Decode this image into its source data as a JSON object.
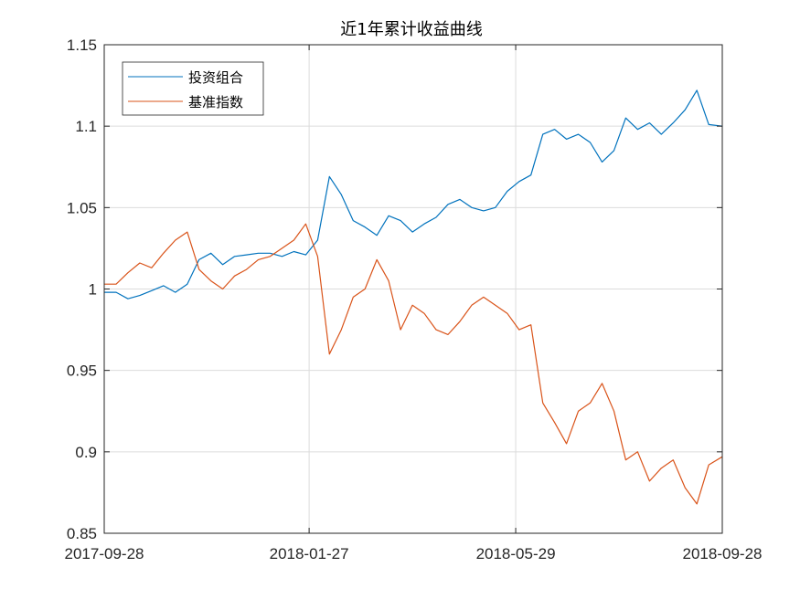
{
  "chart_data": {
    "type": "line",
    "title": "近1年累计收益曲线",
    "xlabel": "",
    "ylabel": "",
    "x_tick_labels": [
      "2017-09-28",
      "2018-01-27",
      "2018-05-29",
      "2018-09-28"
    ],
    "x_range": [
      "2017-09-28",
      "2018-09-28"
    ],
    "ylim": [
      0.85,
      1.15
    ],
    "y_ticks": [
      0.85,
      0.9,
      0.95,
      1,
      1.05,
      1.1,
      1.15
    ],
    "y_tick_labels": [
      "0.85",
      "0.9",
      "0.95",
      "1",
      "1.05",
      "1.1",
      "1.15"
    ],
    "grid": true,
    "legend_position": "top-left",
    "series": [
      {
        "name": "投资组合",
        "color": "#0072BD",
        "points": [
          [
            "2017-09-28",
            0.998
          ],
          [
            "2017-10-05",
            0.998
          ],
          [
            "2017-10-12",
            0.994
          ],
          [
            "2017-10-19",
            0.996
          ],
          [
            "2017-10-26",
            0.999
          ],
          [
            "2017-11-02",
            1.002
          ],
          [
            "2017-11-09",
            0.998
          ],
          [
            "2017-11-16",
            1.003
          ],
          [
            "2017-11-23",
            1.018
          ],
          [
            "2017-11-30",
            1.022
          ],
          [
            "2017-12-07",
            1.015
          ],
          [
            "2017-12-14",
            1.02
          ],
          [
            "2017-12-21",
            1.021
          ],
          [
            "2017-12-28",
            1.022
          ],
          [
            "2018-01-04",
            1.022
          ],
          [
            "2018-01-11",
            1.02
          ],
          [
            "2018-01-18",
            1.023
          ],
          [
            "2018-01-25",
            1.021
          ],
          [
            "2018-02-01",
            1.03
          ],
          [
            "2018-02-08",
            1.069
          ],
          [
            "2018-02-15",
            1.058
          ],
          [
            "2018-02-22",
            1.042
          ],
          [
            "2018-03-01",
            1.038
          ],
          [
            "2018-03-08",
            1.033
          ],
          [
            "2018-03-15",
            1.045
          ],
          [
            "2018-03-22",
            1.042
          ],
          [
            "2018-03-29",
            1.035
          ],
          [
            "2018-04-05",
            1.04
          ],
          [
            "2018-04-12",
            1.044
          ],
          [
            "2018-04-19",
            1.052
          ],
          [
            "2018-04-26",
            1.055
          ],
          [
            "2018-05-03",
            1.05
          ],
          [
            "2018-05-10",
            1.048
          ],
          [
            "2018-05-17",
            1.05
          ],
          [
            "2018-05-24",
            1.06
          ],
          [
            "2018-05-31",
            1.066
          ],
          [
            "2018-06-07",
            1.07
          ],
          [
            "2018-06-14",
            1.095
          ],
          [
            "2018-06-21",
            1.098
          ],
          [
            "2018-06-28",
            1.092
          ],
          [
            "2018-07-05",
            1.095
          ],
          [
            "2018-07-12",
            1.09
          ],
          [
            "2018-07-19",
            1.078
          ],
          [
            "2018-07-26",
            1.085
          ],
          [
            "2018-08-02",
            1.105
          ],
          [
            "2018-08-09",
            1.098
          ],
          [
            "2018-08-16",
            1.102
          ],
          [
            "2018-08-23",
            1.095
          ],
          [
            "2018-08-30",
            1.102
          ],
          [
            "2018-09-06",
            1.11
          ],
          [
            "2018-09-13",
            1.122
          ],
          [
            "2018-09-20",
            1.101
          ],
          [
            "2018-09-28",
            1.1
          ]
        ]
      },
      {
        "name": "基准指数",
        "color": "#D95319",
        "points": [
          [
            "2017-09-28",
            1.003
          ],
          [
            "2017-10-05",
            1.003
          ],
          [
            "2017-10-12",
            1.01
          ],
          [
            "2017-10-19",
            1.016
          ],
          [
            "2017-10-26",
            1.013
          ],
          [
            "2017-11-02",
            1.022
          ],
          [
            "2017-11-09",
            1.03
          ],
          [
            "2017-11-16",
            1.035
          ],
          [
            "2017-11-23",
            1.012
          ],
          [
            "2017-11-30",
            1.005
          ],
          [
            "2017-12-07",
            1.0
          ],
          [
            "2017-12-14",
            1.008
          ],
          [
            "2017-12-21",
            1.012
          ],
          [
            "2017-12-28",
            1.018
          ],
          [
            "2018-01-04",
            1.02
          ],
          [
            "2018-01-11",
            1.025
          ],
          [
            "2018-01-18",
            1.03
          ],
          [
            "2018-01-25",
            1.04
          ],
          [
            "2018-02-01",
            1.02
          ],
          [
            "2018-02-08",
            0.96
          ],
          [
            "2018-02-15",
            0.975
          ],
          [
            "2018-02-22",
            0.995
          ],
          [
            "2018-03-01",
            1.0
          ],
          [
            "2018-03-08",
            1.018
          ],
          [
            "2018-03-15",
            1.005
          ],
          [
            "2018-03-22",
            0.975
          ],
          [
            "2018-03-29",
            0.99
          ],
          [
            "2018-04-05",
            0.985
          ],
          [
            "2018-04-12",
            0.975
          ],
          [
            "2018-04-19",
            0.972
          ],
          [
            "2018-04-26",
            0.98
          ],
          [
            "2018-05-03",
            0.99
          ],
          [
            "2018-05-10",
            0.995
          ],
          [
            "2018-05-17",
            0.99
          ],
          [
            "2018-05-24",
            0.985
          ],
          [
            "2018-05-31",
            0.975
          ],
          [
            "2018-06-07",
            0.978
          ],
          [
            "2018-06-14",
            0.93
          ],
          [
            "2018-06-21",
            0.918
          ],
          [
            "2018-06-28",
            0.905
          ],
          [
            "2018-07-05",
            0.925
          ],
          [
            "2018-07-12",
            0.93
          ],
          [
            "2018-07-19",
            0.942
          ],
          [
            "2018-07-26",
            0.925
          ],
          [
            "2018-08-02",
            0.895
          ],
          [
            "2018-08-09",
            0.9
          ],
          [
            "2018-08-16",
            0.882
          ],
          [
            "2018-08-23",
            0.89
          ],
          [
            "2018-08-30",
            0.895
          ],
          [
            "2018-09-06",
            0.878
          ],
          [
            "2018-09-13",
            0.868
          ],
          [
            "2018-09-20",
            0.892
          ],
          [
            "2018-09-28",
            0.897
          ]
        ]
      }
    ]
  }
}
